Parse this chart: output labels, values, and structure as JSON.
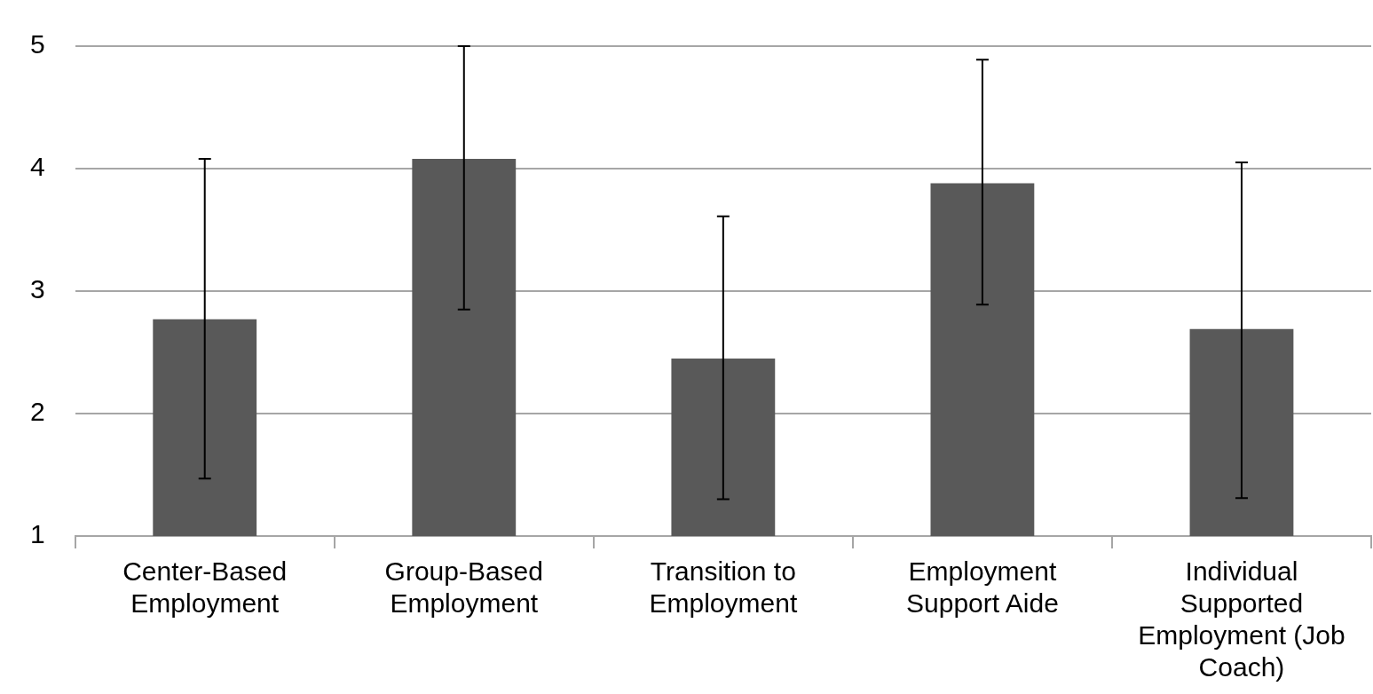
{
  "chart_data": {
    "type": "bar",
    "categories": [
      "Center-Based Employment",
      "Group-Based Employment",
      "Transition to Employment",
      "Employment Support Aide",
      "Individual Supported Employment (Job Coach)"
    ],
    "values": [
      2.77,
      4.08,
      2.45,
      3.88,
      2.69
    ],
    "errors": [
      [
        1.47,
        4.08
      ],
      [
        2.85,
        5
      ],
      [
        1.3,
        3.61
      ],
      [
        2.89,
        4.89
      ],
      [
        1.31,
        4.05
      ]
    ],
    "color": "#595959",
    "ylim": [
      1,
      5
    ],
    "yticks": [
      1,
      2,
      3,
      4,
      5
    ],
    "grid": "y",
    "legend": false
  }
}
